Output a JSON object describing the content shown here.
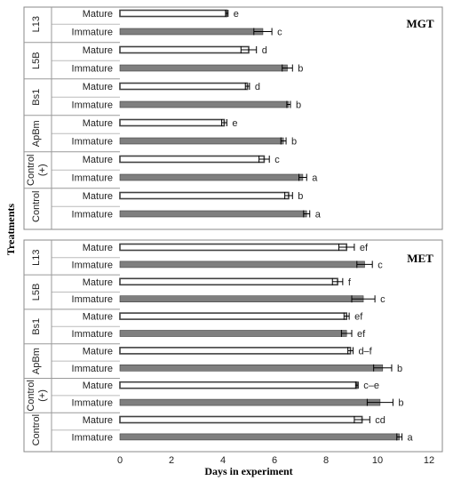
{
  "chart_data": {
    "type": "bar",
    "orientation": "horizontal",
    "xlabel": "Days in experiment",
    "ylabel": "Treatments",
    "xlim": [
      0,
      12
    ],
    "x_ticks": [
      "0",
      "2",
      "4",
      "6",
      "8",
      "10",
      "12"
    ],
    "grid": false,
    "groups": [
      "L13",
      "L5B",
      "Bs1",
      "ApBm",
      "Control (+)",
      "Control"
    ],
    "bar_labels": [
      "Mature",
      "Immature"
    ],
    "colors": {
      "mature": "#ffffff",
      "immature": "#7f7f7f",
      "outline": "#404040"
    },
    "panels": [
      {
        "title": "MGT",
        "bars": [
          {
            "group": "L13",
            "label": "Mature",
            "value": 4.15,
            "error": 0.05,
            "sig": "e"
          },
          {
            "group": "L13",
            "label": "Immature",
            "value": 5.55,
            "error": 0.35,
            "sig": "c"
          },
          {
            "group": "L5B",
            "label": "Mature",
            "value": 5.0,
            "error": 0.3,
            "sig": "d"
          },
          {
            "group": "L5B",
            "label": "Immature",
            "value": 6.5,
            "error": 0.2,
            "sig": "b"
          },
          {
            "group": "Bs1",
            "label": "Mature",
            "value": 4.95,
            "error": 0.08,
            "sig": "d"
          },
          {
            "group": "Bs1",
            "label": "Immature",
            "value": 6.55,
            "error": 0.07,
            "sig": "b"
          },
          {
            "group": "ApBm",
            "label": "Mature",
            "value": 4.05,
            "error": 0.1,
            "sig": "e"
          },
          {
            "group": "ApBm",
            "label": "Immature",
            "value": 6.35,
            "error": 0.1,
            "sig": "b"
          },
          {
            "group": "Control (+)",
            "label": "Mature",
            "value": 5.6,
            "error": 0.2,
            "sig": "c"
          },
          {
            "group": "Control (+)",
            "label": "Immature",
            "value": 7.1,
            "error": 0.15,
            "sig": "a"
          },
          {
            "group": "Control",
            "label": "Mature",
            "value": 6.55,
            "error": 0.15,
            "sig": "b"
          },
          {
            "group": "Control",
            "label": "Immature",
            "value": 7.25,
            "error": 0.12,
            "sig": "a"
          }
        ]
      },
      {
        "title": "MET",
        "bars": [
          {
            "group": "L13",
            "label": "Mature",
            "value": 8.8,
            "error": 0.3,
            "sig": "ef"
          },
          {
            "group": "L13",
            "label": "Immature",
            "value": 9.5,
            "error": 0.3,
            "sig": "c"
          },
          {
            "group": "L5B",
            "label": "Mature",
            "value": 8.45,
            "error": 0.2,
            "sig": "f"
          },
          {
            "group": "L5B",
            "label": "Immature",
            "value": 9.45,
            "error": 0.45,
            "sig": "c"
          },
          {
            "group": "Bs1",
            "label": "Mature",
            "value": 8.8,
            "error": 0.1,
            "sig": "ef"
          },
          {
            "group": "Bs1",
            "label": "Immature",
            "value": 8.8,
            "error": 0.2,
            "sig": "ef"
          },
          {
            "group": "ApBm",
            "label": "Mature",
            "value": 8.95,
            "error": 0.1,
            "sig": "d–f"
          },
          {
            "group": "ApBm",
            "label": "Immature",
            "value": 10.2,
            "error": 0.35,
            "sig": "b"
          },
          {
            "group": "Control (+)",
            "label": "Mature",
            "value": 9.2,
            "error": 0.05,
            "sig": "c–e"
          },
          {
            "group": "Control (+)",
            "label": "Immature",
            "value": 10.1,
            "error": 0.5,
            "sig": "b"
          },
          {
            "group": "Control",
            "label": "Mature",
            "value": 9.4,
            "error": 0.3,
            "sig": "cd"
          },
          {
            "group": "Control",
            "label": "Immature",
            "value": 10.85,
            "error": 0.1,
            "sig": "a"
          }
        ]
      }
    ]
  }
}
